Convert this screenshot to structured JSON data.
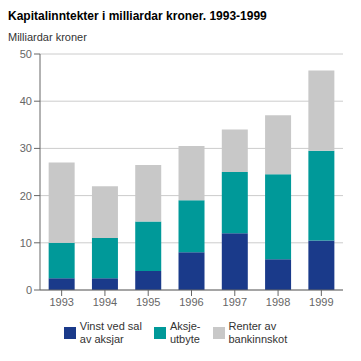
{
  "chart_data": {
    "type": "bar",
    "title": "Kapitalinntekter i milliardar kroner. 1993-1999",
    "y_label": "Milliardar kroner",
    "categories": [
      "1993",
      "1994",
      "1995",
      "1996",
      "1997",
      "1998",
      "1999"
    ],
    "series": [
      {
        "name": "Vinst ved sal\nav aksjar",
        "color": "#1a3a8a",
        "values": [
          2.5,
          2.5,
          4.0,
          8.0,
          12.0,
          6.5,
          10.5
        ]
      },
      {
        "name": "Aksje-\nutbyte",
        "color": "#009999",
        "values": [
          7.5,
          8.5,
          10.5,
          11.0,
          13.0,
          18.0,
          19.0
        ]
      },
      {
        "name": "Renter av\nbankinnskot",
        "color": "#c8c8c8",
        "values": [
          17.0,
          11.0,
          12.0,
          11.5,
          9.0,
          12.5,
          17.0
        ]
      }
    ],
    "stacked": true,
    "ylim": [
      0,
      50
    ],
    "yticks": [
      0,
      10,
      20,
      30,
      40,
      50
    ],
    "grid": true
  }
}
